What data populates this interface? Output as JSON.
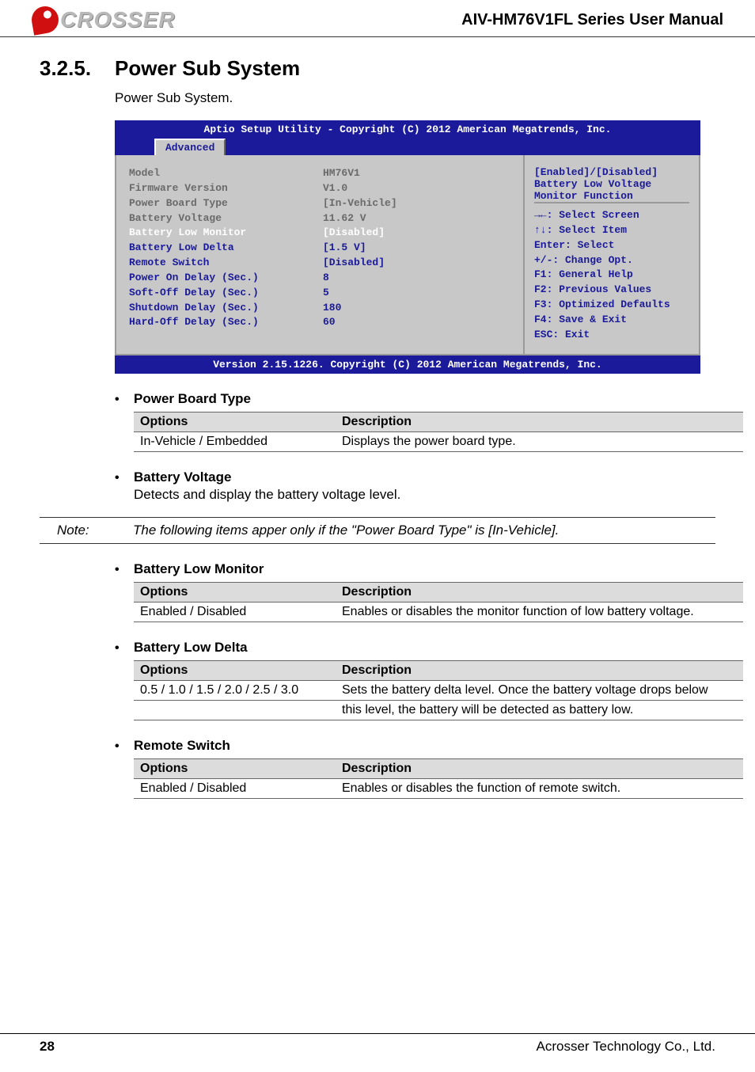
{
  "header": {
    "logo_text": "CROSSER",
    "manual_title": "AIV-HM76V1FL Series User Manual"
  },
  "section": {
    "number": "3.2.5.",
    "title": "Power Sub System",
    "intro": "Power Sub System."
  },
  "bios": {
    "top": "Aptio Setup Utility - Copyright (C) 2012 American Megatrends, Inc.",
    "tab": "Advanced",
    "rows": [
      {
        "label": "Model",
        "value": "HM76V1",
        "style": "gray"
      },
      {
        "label": "Firmware Version",
        "value": "V1.0",
        "style": "gray"
      },
      {
        "label": "",
        "value": "",
        "style": "gray"
      },
      {
        "label": "Power Board Type",
        "value": "[In-Vehicle]",
        "style": "gray"
      },
      {
        "label": "",
        "value": "",
        "style": "gray"
      },
      {
        "label": "Battery Voltage",
        "value": "11.62 V",
        "style": "gray"
      },
      {
        "label": "",
        "value": "",
        "style": "gray"
      },
      {
        "label": "Battery Low Monitor",
        "value": "[Disabled]",
        "style": "white"
      },
      {
        "label": "Battery Low Delta",
        "value": "[1.5 V]",
        "style": "blue"
      },
      {
        "label": "Remote Switch",
        "value": "[Disabled]",
        "style": "blue"
      },
      {
        "label": "Power On Delay (Sec.)",
        "value": "8",
        "style": "blue"
      },
      {
        "label": "Soft-Off Delay (Sec.)",
        "value": "5",
        "style": "blue"
      },
      {
        "label": "Shutdown Delay (Sec.)",
        "value": "180",
        "style": "blue"
      },
      {
        "label": "Hard-Off Delay (Sec.)",
        "value": "60",
        "style": "blue"
      }
    ],
    "help": [
      "[Enabled]/[Disabled]",
      "Battery Low Voltage",
      "Monitor Function"
    ],
    "nav": [
      "→←: Select Screen",
      "↑↓: Select Item",
      "Enter: Select",
      "+/-: Change Opt.",
      "F1: General Help",
      "F2: Previous Values",
      "F3: Optimized Defaults",
      "F4: Save & Exit",
      "ESC: Exit"
    ],
    "bottom": "Version 2.15.1226. Copyright (C) 2012 American Megatrends, Inc."
  },
  "items": {
    "power_board_type": {
      "title": "Power Board Type",
      "opt_header": "Options",
      "desc_header": "Description",
      "option": "In-Vehicle / Embedded",
      "description": "Displays the power board type."
    },
    "battery_voltage": {
      "title": "Battery Voltage",
      "body": "Detects and display the battery voltage level."
    },
    "note": {
      "label": "Note:",
      "text": "The following items apper only if the \"Power Board Type\" is [In-Vehicle]."
    },
    "battery_low_monitor": {
      "title": "Battery Low Monitor",
      "opt_header": "Options",
      "desc_header": "Description",
      "option": "Enabled / Disabled",
      "description": "Enables or disables the monitor function of low battery voltage."
    },
    "battery_low_delta": {
      "title": "Battery Low Delta",
      "opt_header": "Options",
      "desc_header": "Description",
      "option": "0.5 / 1.0 / 1.5 / 2.0 / 2.5 / 3.0",
      "description1": "Sets the battery delta level. Once the battery voltage drops below",
      "description2": "this level, the battery will be detected as battery low."
    },
    "remote_switch": {
      "title": "Remote Switch",
      "opt_header": "Options",
      "desc_header": "Description",
      "option": "Enabled / Disabled",
      "description": "Enables or disables the function of remote switch."
    }
  },
  "footer": {
    "page": "28",
    "company": "Acrosser Technology Co., Ltd."
  }
}
